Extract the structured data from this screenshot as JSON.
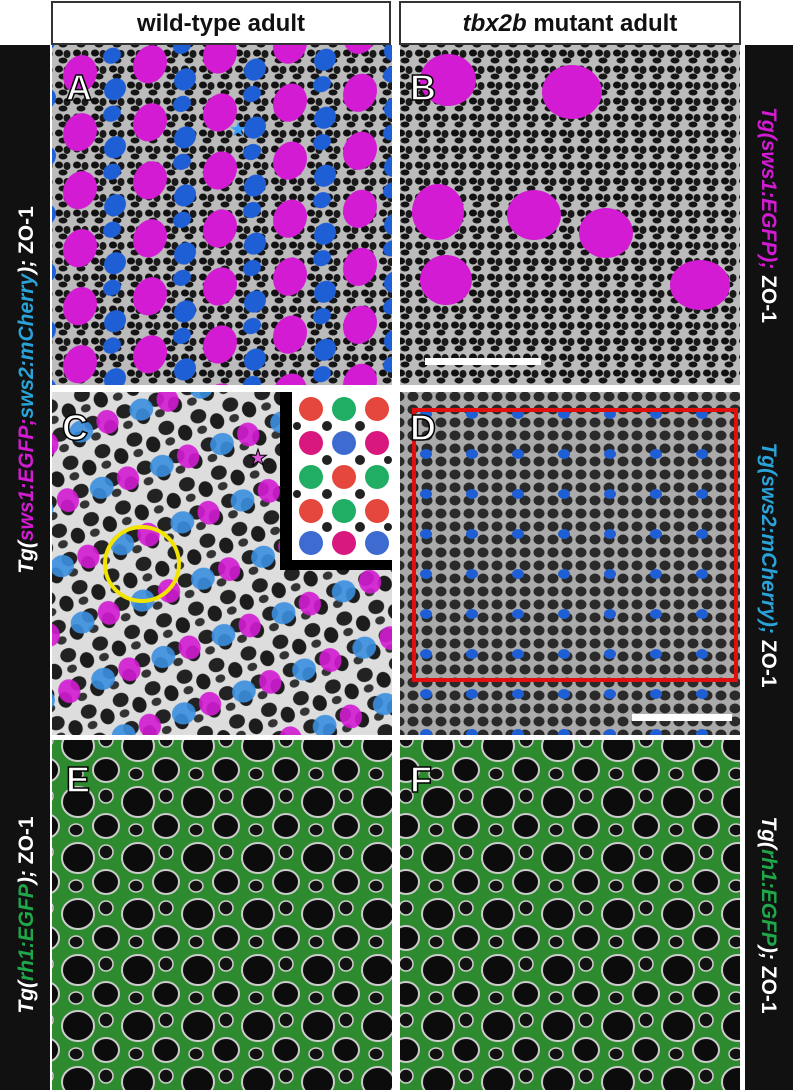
{
  "header": {
    "left": "wild-type adult",
    "right": {
      "gene": "tbx2b",
      "rest": " mutant  adult"
    }
  },
  "panel_letters": [
    "A",
    "B",
    "C",
    "D",
    "E",
    "F"
  ],
  "side_labels": {
    "left_top": [
      "Tg(",
      "sws1:EGFP",
      ";",
      "sws2:mCherry",
      ");",
      " ZO-1"
    ],
    "left_bottom": [
      "Tg(",
      "rh1:EGFP",
      ");",
      " ZO-1"
    ],
    "right_b": [
      "Tg(",
      "sws1:EGFP",
      ");",
      " ZO-1"
    ],
    "right_d": [
      "Tg(",
      "sws2:mCherry",
      ");",
      " ZO-1"
    ],
    "right_f": [
      "Tg(",
      "rh1:EGFP",
      ");",
      " ZO-1"
    ]
  }
}
